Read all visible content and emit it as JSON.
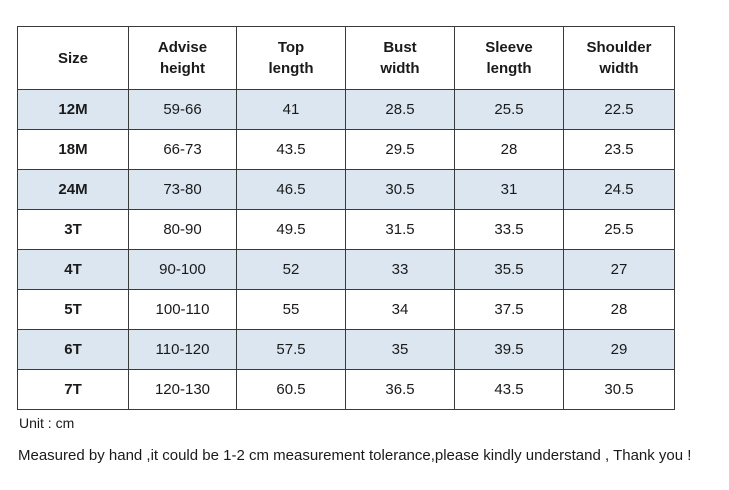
{
  "table": {
    "headers": [
      [
        "Size"
      ],
      [
        "Advise",
        "height"
      ],
      [
        "Top",
        "length"
      ],
      [
        "Bust",
        "width"
      ],
      [
        "Sleeve",
        "length"
      ],
      [
        "Shoulder",
        "width"
      ]
    ],
    "rows": [
      [
        "12M",
        "59-66",
        "41",
        "28.5",
        "25.5",
        "22.5"
      ],
      [
        "18M",
        "66-73",
        "43.5",
        "29.5",
        "28",
        "23.5"
      ],
      [
        "24M",
        "73-80",
        "46.5",
        "30.5",
        "31",
        "24.5"
      ],
      [
        "3T",
        "80-90",
        "49.5",
        "31.5",
        "33.5",
        "25.5"
      ],
      [
        "4T",
        "90-100",
        "52",
        "33",
        "35.5",
        "27"
      ],
      [
        "5T",
        "100-110",
        "55",
        "34",
        "37.5",
        "28"
      ],
      [
        "6T",
        "110-120",
        "57.5",
        "35",
        "39.5",
        "29"
      ],
      [
        "7T",
        "120-130",
        "60.5",
        "36.5",
        "43.5",
        "30.5"
      ]
    ],
    "shaded_row_color": "#dce6f0"
  },
  "unit_note": "Unit : cm",
  "disclaimer": "Measured by hand ,it could be 1-2 cm measurement tolerance,please kindly understand , Thank you !"
}
